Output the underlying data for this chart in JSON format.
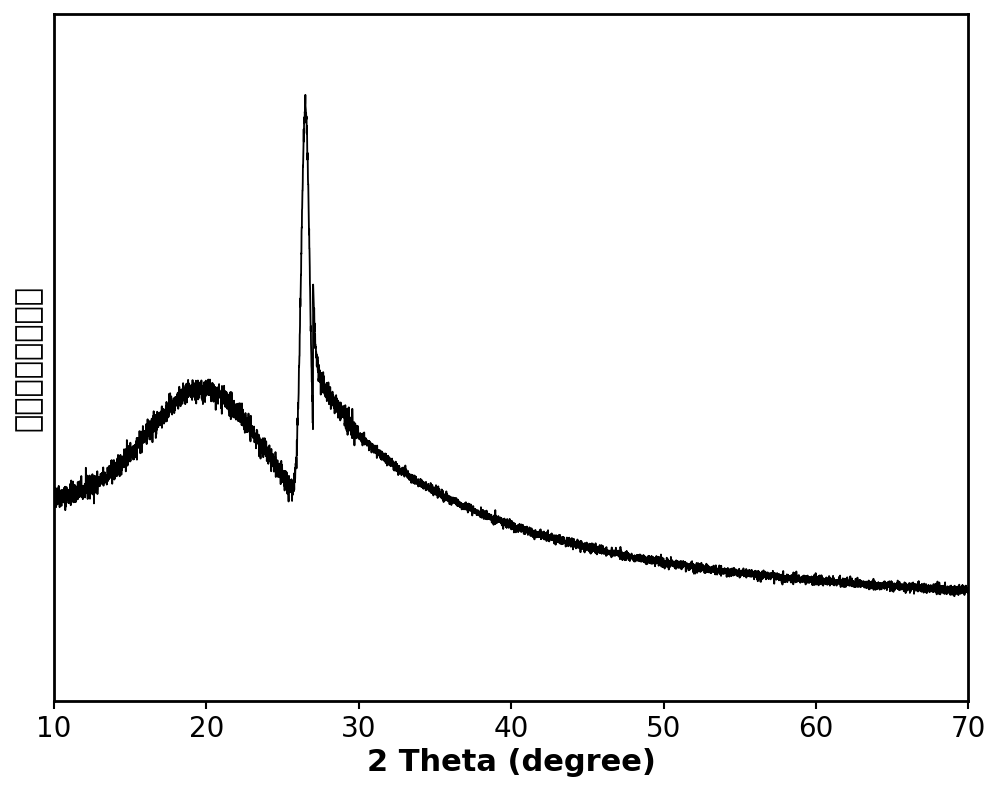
{
  "xlabel": "2 Theta (degree)",
  "ylabel": "强度（任意单位）",
  "xlim": [
    10,
    70
  ],
  "ylim": [
    0.0,
    1.08
  ],
  "x_ticks": [
    10,
    20,
    30,
    40,
    50,
    60,
    70
  ],
  "line_color": "#000000",
  "line_width": 1.3,
  "background_color": "#ffffff",
  "xlabel_fontsize": 22,
  "ylabel_fontsize": 22,
  "tick_fontsize": 20,
  "noise_seed": 42
}
